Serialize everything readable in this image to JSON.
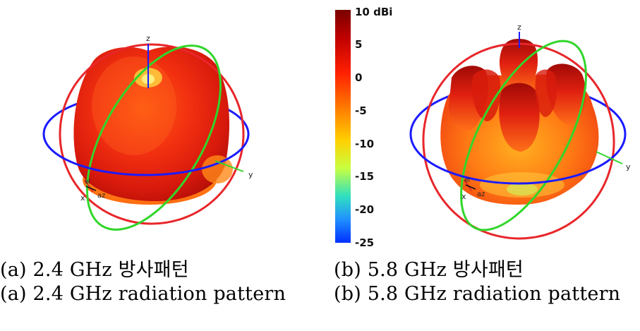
{
  "colorbar": {
    "ticks": [
      "10 dBi",
      "5",
      "0",
      "-5",
      "-10",
      "-15",
      "-20",
      "-25"
    ],
    "colors": [
      "#7a0000",
      "#c00000",
      "#ff2000",
      "#ff7a00",
      "#ffd000",
      "#c8ff40",
      "#30e0c0",
      "#2090ff",
      "#0030ff"
    ]
  },
  "panels": [
    {
      "axes": {
        "z": "z",
        "y": "y",
        "x": "x",
        "el": "el",
        "az": "az"
      },
      "caption_ko": "(a)  2.4  GHz  방사패턴",
      "caption_en": "(a)  2.4  GHz  radiation  pattern"
    },
    {
      "axes": {
        "z": "z",
        "y": "y",
        "x": "x",
        "el": "el",
        "az": "az"
      },
      "caption_ko": "(b)  5.8  GHz  방사패턴",
      "caption_en": "(b)  5.8  GHz  radiation  pattern"
    }
  ]
}
